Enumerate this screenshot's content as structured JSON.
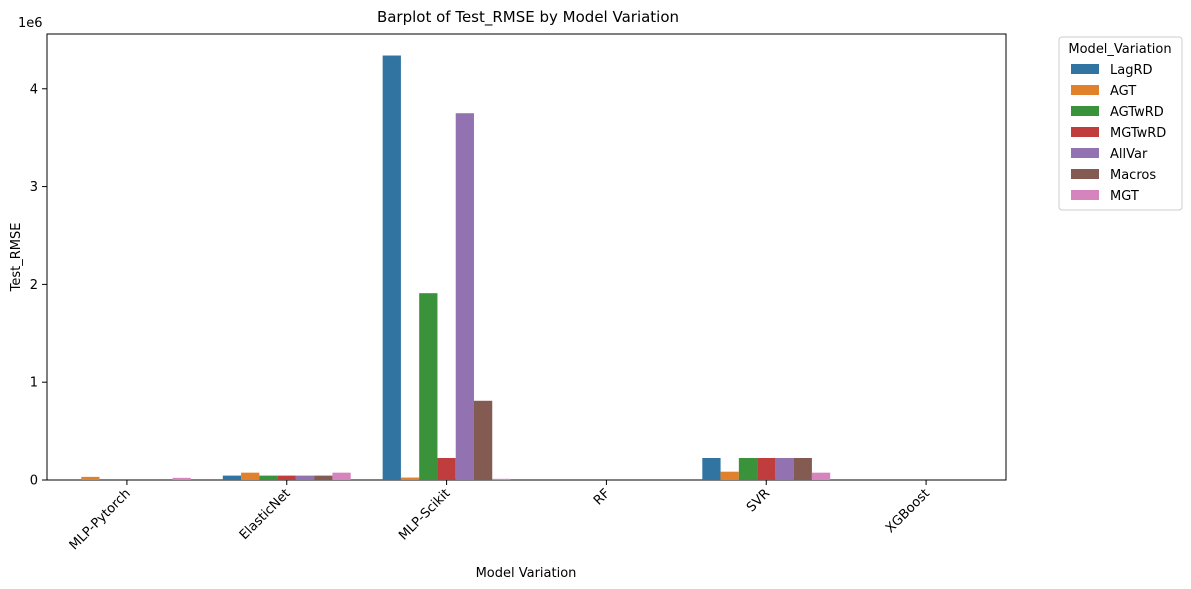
{
  "chart_data": {
    "type": "bar",
    "title": "Barplot of Test_RMSE by Model Variation",
    "xlabel": "Model Variation",
    "ylabel": "Test_RMSE",
    "y_scale_label": "1e6",
    "y_scale": 1000000,
    "ylim": [
      0,
      4560000
    ],
    "yticks": [
      0,
      1,
      2,
      3,
      4
    ],
    "categories": [
      "MLP-Pytorch",
      "ElasticNet",
      "MLP-Scikit",
      "RF",
      "SVR",
      "XGBoost"
    ],
    "legend": {
      "title": "Model_Variation",
      "position": "outside-top-right"
    },
    "series": [
      {
        "name": "LagRD",
        "color": "#3274a1",
        "values": [
          0,
          45000,
          4340000,
          0,
          225000,
          0
        ]
      },
      {
        "name": "AGT",
        "color": "#e1812c",
        "values": [
          32000,
          75000,
          25000,
          0,
          85000,
          0
        ]
      },
      {
        "name": "AGTwRD",
        "color": "#3a923a",
        "values": [
          0,
          45000,
          1910000,
          0,
          225000,
          0
        ]
      },
      {
        "name": "MGTwRD",
        "color": "#c03d3e",
        "values": [
          0,
          45000,
          225000,
          0,
          225000,
          0
        ]
      },
      {
        "name": "AllVar",
        "color": "#9372b2",
        "values": [
          0,
          45000,
          3750000,
          0,
          225000,
          0
        ]
      },
      {
        "name": "Macros",
        "color": "#845b53",
        "values": [
          0,
          45000,
          810000,
          0,
          225000,
          0
        ]
      },
      {
        "name": "MGT",
        "color": "#d684bd",
        "values": [
          22000,
          75000,
          12000,
          0,
          75000,
          0
        ]
      }
    ]
  }
}
